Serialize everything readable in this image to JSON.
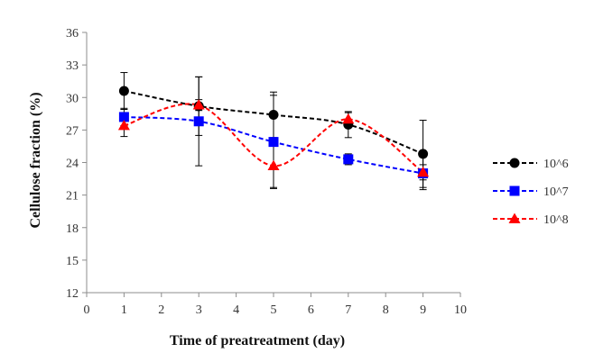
{
  "chart_data": {
    "type": "line",
    "xlabel": "Time of preatreatment (day)",
    "ylabel": "Cellulose fraction (%)",
    "xlim": [
      0,
      10
    ],
    "ylim": [
      12,
      36
    ],
    "xticks": [
      0,
      1,
      2,
      3,
      4,
      5,
      6,
      7,
      8,
      9,
      10
    ],
    "yticks": [
      12,
      15,
      18,
      21,
      24,
      27,
      30,
      33,
      36
    ],
    "grid": false,
    "legend": "right",
    "series": [
      {
        "name": "10^6",
        "color": "#000000",
        "marker": "circle",
        "x": [
          1,
          3,
          5,
          7,
          9
        ],
        "y": [
          30.6,
          29.2,
          28.4,
          27.5,
          24.8
        ],
        "err": [
          1.7,
          2.7,
          2.1,
          1.2,
          3.1
        ]
      },
      {
        "name": "10^7",
        "color": "#0000ff",
        "marker": "square",
        "x": [
          1,
          3,
          5,
          7,
          9
        ],
        "y": [
          28.2,
          27.8,
          25.9,
          24.3,
          23.0
        ],
        "err": [
          0.8,
          4.1,
          4.3,
          0.5,
          1.5
        ]
      },
      {
        "name": "10^8",
        "color": "#ff0000",
        "marker": "triangle",
        "x": [
          1,
          3,
          5,
          7,
          9
        ],
        "y": [
          27.4,
          29.3,
          23.7,
          28.0,
          23.1
        ],
        "err": [
          1.0,
          0.5,
          2.0,
          0.6,
          0.7
        ]
      }
    ]
  }
}
